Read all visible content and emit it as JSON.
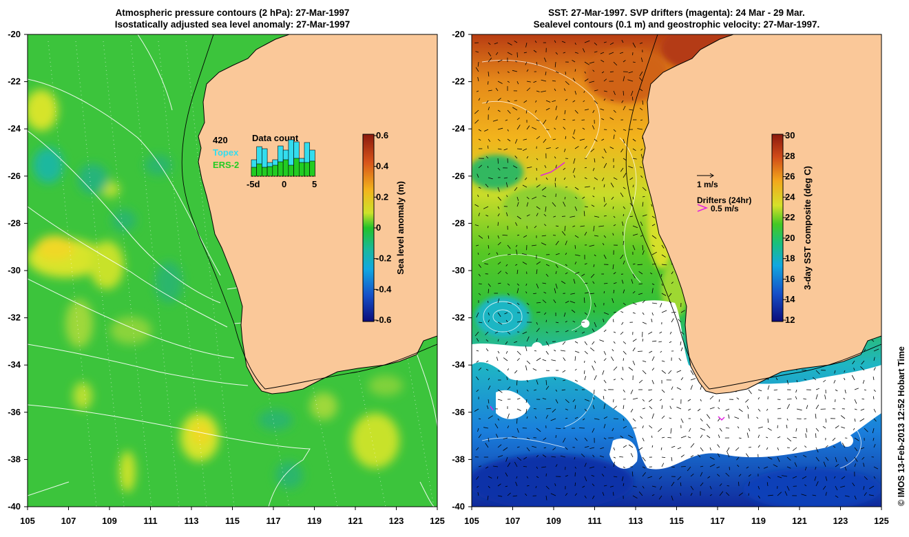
{
  "left_panel": {
    "title_line1": "Atmospheric pressure contours (2 hPa): 27-Mar-1997",
    "title_line2": "Isostatically adjusted sea level anomaly: 27-Mar-1997",
    "colorbar_label": "Sea level anomaly (m)",
    "colorbar_ticks": [
      "0.6",
      "0.4",
      "0.2",
      "0",
      "-0.2",
      "-0.4",
      "-0.6"
    ],
    "colorbar_range": [
      -0.6,
      0.6
    ],
    "inset": {
      "count_label": "420",
      "title": "Data count",
      "series": [
        {
          "name": "Topex",
          "color": "#33ddee"
        },
        {
          "name": "ERS-2",
          "color": "#22cc22"
        }
      ],
      "x_ticks": [
        "-5d",
        "0",
        "5"
      ]
    }
  },
  "right_panel": {
    "title_line1": "SST: 27-Mar-1997. SVP drifters (magenta): 24 Mar - 29 Mar.",
    "title_line2": "Sealevel contours (0.1 m) and geostrophic velocity: 27-Mar-1997.",
    "colorbar_label": "3-day SST composite (deg C)",
    "colorbar_ticks": [
      "30",
      "28",
      "26",
      "24",
      "22",
      "20",
      "18",
      "16",
      "14",
      "12"
    ],
    "colorbar_range": [
      12,
      30
    ],
    "velocity_scale_label": "1 m/s",
    "drifters_label": "Drifters (24hr)",
    "drifters_scale_label": "0.5 m/s"
  },
  "axes": {
    "lat_ticks": [
      "-20",
      "-22",
      "-24",
      "-26",
      "-28",
      "-30",
      "-32",
      "-34",
      "-36",
      "-38",
      "-40"
    ],
    "lon_ticks": [
      "105",
      "107",
      "109",
      "111",
      "113",
      "115",
      "117",
      "119",
      "121",
      "123",
      "125"
    ],
    "lat_range": [
      -40,
      -20
    ],
    "lon_range": [
      105,
      125
    ]
  },
  "credit": "© IMOS 13-Feb-2013 12:52 Hobart Time",
  "colors": {
    "land": "#fac899",
    "ocean_left": "#3cc43c",
    "ocean_white_cloud": "#ffffff"
  }
}
